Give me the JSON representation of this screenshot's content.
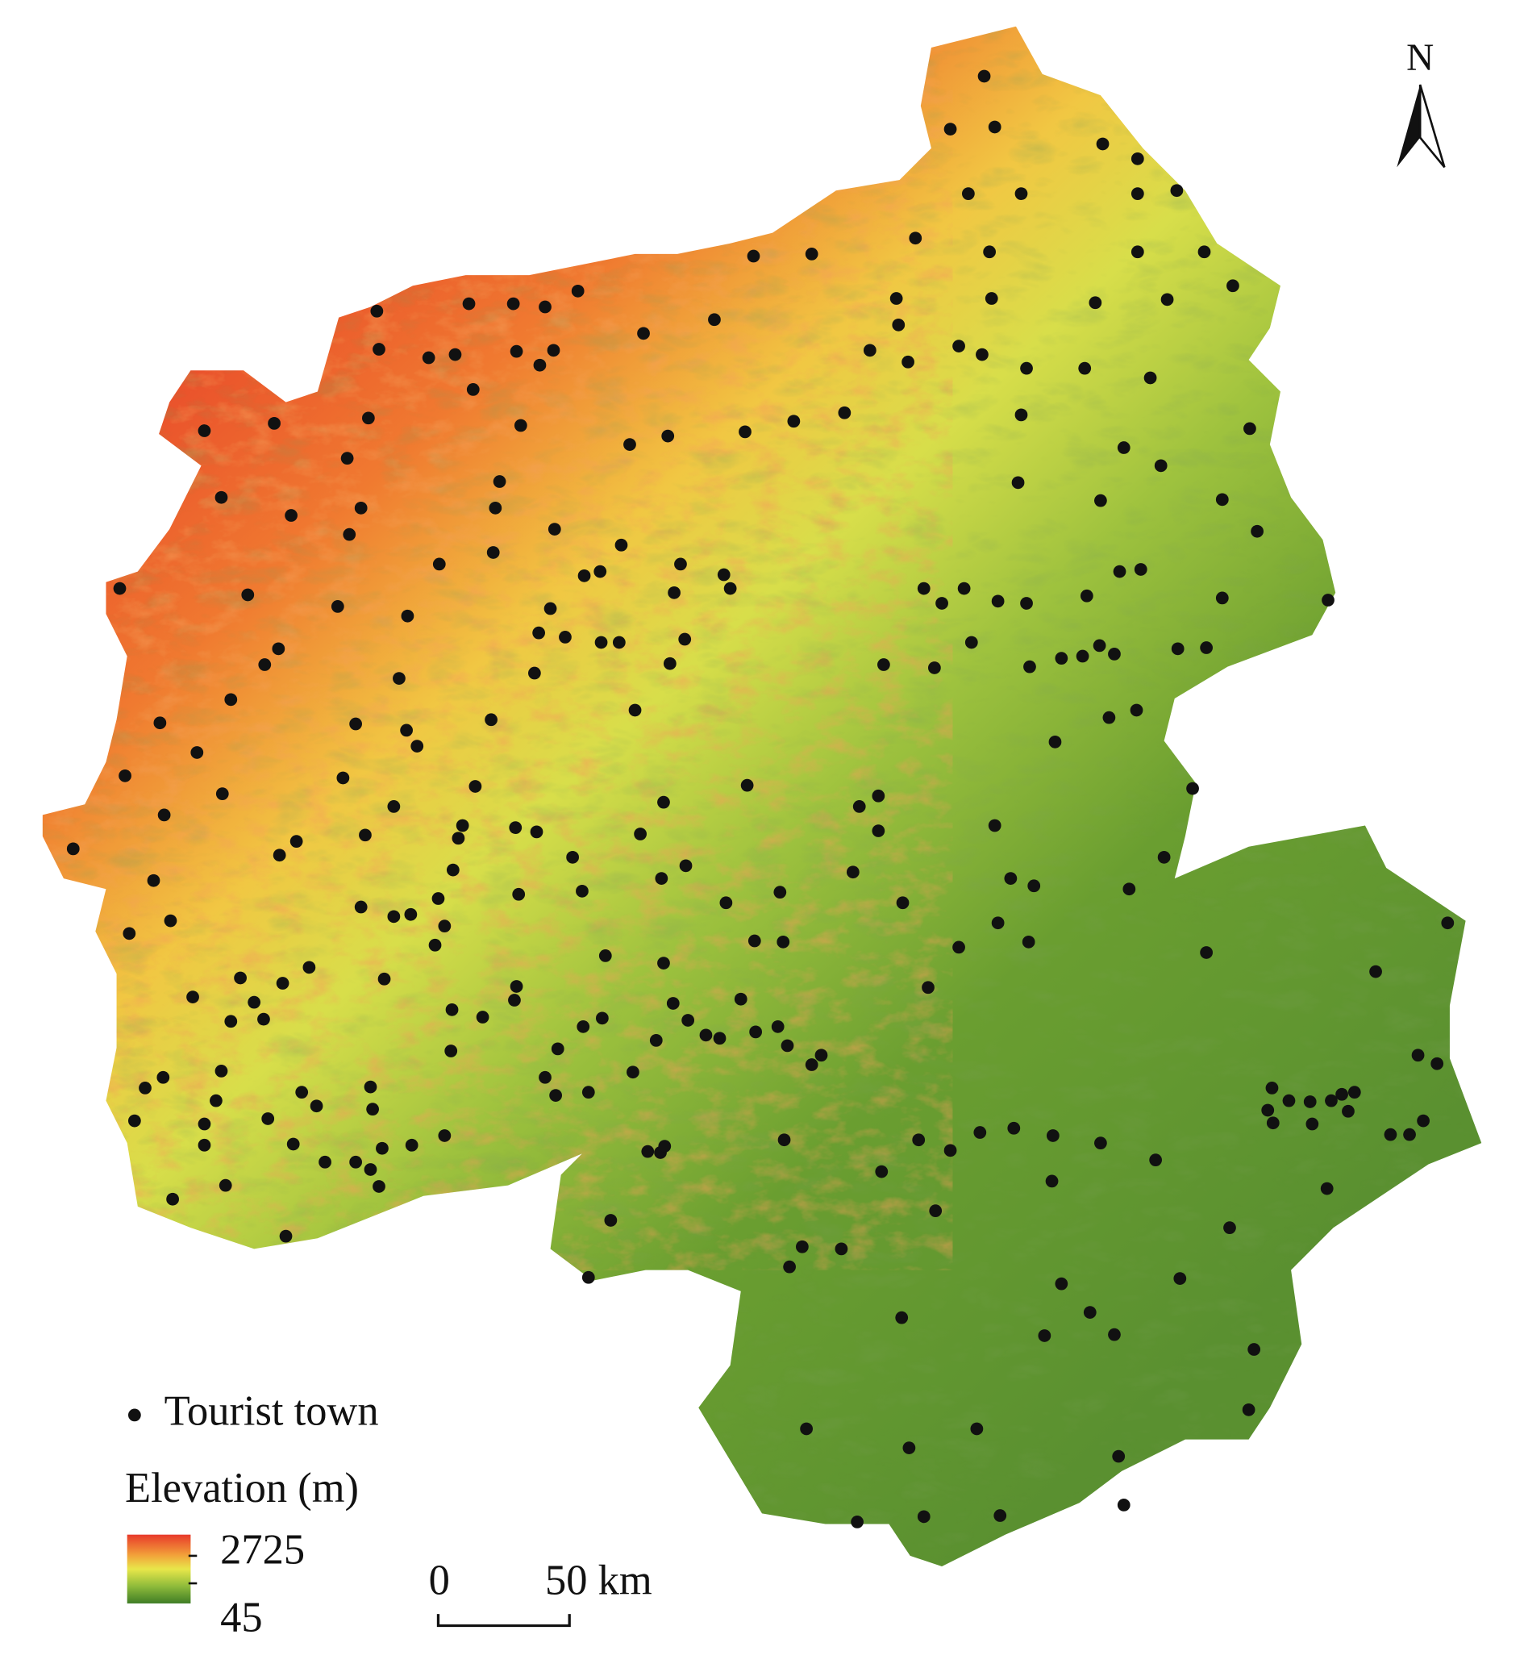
{
  "north_label": "N",
  "legend": {
    "point_label": "Tourist town",
    "elevation_title": "Elevation (m)",
    "elevation_max": 2725,
    "elevation_min": 45
  },
  "scale_bar": {
    "start_label": "0",
    "end_label": "50 km"
  }
}
